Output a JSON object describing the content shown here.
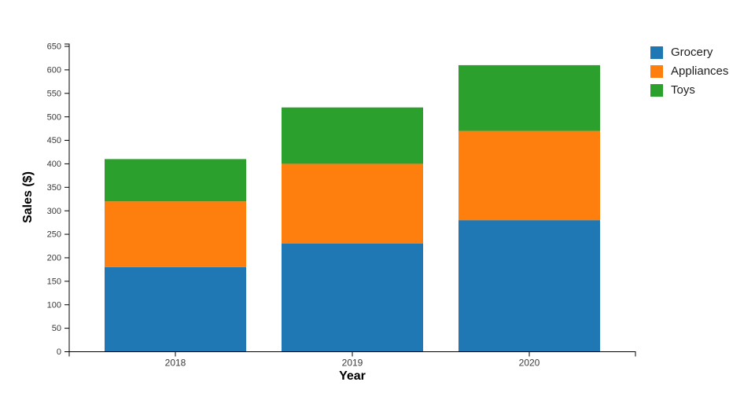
{
  "page": {
    "background_color": "#ffffff"
  },
  "chart_data": {
    "type": "bar",
    "stacked": true,
    "title": "",
    "xlabel": "Year",
    "ylabel": "Sales ($)",
    "categories": [
      "2018",
      "2019",
      "2020"
    ],
    "series": [
      {
        "name": "Grocery",
        "color": "#1f77b4",
        "values": [
          180,
          230,
          280
        ]
      },
      {
        "name": "Appliances",
        "color": "#ff7f0e",
        "values": [
          140,
          170,
          190
        ]
      },
      {
        "name": "Toys",
        "color": "#2ca02c",
        "values": [
          90,
          120,
          140
        ]
      }
    ],
    "stack_totals": [
      410,
      520,
      610
    ],
    "ylim": [
      0,
      650
    ],
    "ytick_step": 50,
    "ytick_labels": [
      "0",
      "50",
      "100",
      "150",
      "200",
      "250",
      "300",
      "350",
      "400",
      "450",
      "500",
      "550",
      "600",
      "650"
    ],
    "grid": false,
    "legend_position": "outside-top-right",
    "axis_color": "#000000",
    "tick_label_color": "#3a3a3a"
  }
}
